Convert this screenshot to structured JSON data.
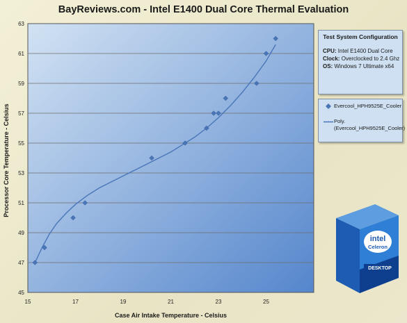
{
  "chart_data": {
    "type": "scatter",
    "title": "BayReviews.com - Intel E1400 Dual Core Thermal Evaluation",
    "xlabel": "Case Air Intake Temperature - Celsius",
    "ylabel": "Processor Core Temperature - Celsius",
    "xlim": [
      15,
      27
    ],
    "ylim": [
      45,
      63
    ],
    "xticks": [
      15,
      17,
      19,
      21,
      23,
      25
    ],
    "yticks": [
      45,
      47,
      49,
      51,
      53,
      55,
      57,
      59,
      61,
      63
    ],
    "grid": "horizontal",
    "legend_position": "right",
    "series": [
      {
        "name": "Evercool_HPH9525E_Cooler",
        "marker": "diamond",
        "color": "#4a76b8",
        "points": [
          [
            15.3,
            47
          ],
          [
            15.7,
            48
          ],
          [
            16.9,
            50
          ],
          [
            17.4,
            51
          ],
          [
            20.2,
            54
          ],
          [
            21.6,
            55
          ],
          [
            22.5,
            56
          ],
          [
            22.8,
            57
          ],
          [
            23.0,
            57
          ],
          [
            23.3,
            58
          ],
          [
            24.6,
            59
          ],
          [
            25.0,
            61
          ],
          [
            25.4,
            62
          ]
        ]
      },
      {
        "name": "Poly. (Evercool_HPH9525E_Cooler)",
        "type": "trendline",
        "color": "#4a76b8",
        "points": [
          [
            15.3,
            47.0
          ],
          [
            15.6,
            48.0
          ],
          [
            15.9,
            48.9
          ],
          [
            16.2,
            49.6
          ],
          [
            16.6,
            50.3
          ],
          [
            17.0,
            50.9
          ],
          [
            17.5,
            51.5
          ],
          [
            18.0,
            52.0
          ],
          [
            18.5,
            52.4
          ],
          [
            19.0,
            52.8
          ],
          [
            19.5,
            53.2
          ],
          [
            20.0,
            53.6
          ],
          [
            20.5,
            54.0
          ],
          [
            21.0,
            54.4
          ],
          [
            21.5,
            54.9
          ],
          [
            22.0,
            55.4
          ],
          [
            22.5,
            56.0
          ],
          [
            23.0,
            56.7
          ],
          [
            23.5,
            57.5
          ],
          [
            24.0,
            58.4
          ],
          [
            24.5,
            59.4
          ],
          [
            25.0,
            60.5
          ],
          [
            25.4,
            61.6
          ]
        ]
      }
    ]
  },
  "legend": {
    "entries": [
      "Evercool_HPH9525E_Cooler",
      "Poly. (Evercool_HPH9525E_Cooler)"
    ]
  },
  "config": {
    "title": "Test System Configuration",
    "rows": [
      {
        "key": "CPU:",
        "value": "Intel E1400  Dual Core"
      },
      {
        "key": "Clock:",
        "value": "Overclocked to 2.4 Ghz"
      },
      {
        "key": "OS:",
        "value": " Windows 7 Ultimate x64"
      }
    ]
  },
  "product_box": {
    "brand": "intel",
    "product": "Celeron",
    "subtitle": "DESKTOP"
  },
  "colors": {
    "plot_bg_top": "#c9daef",
    "plot_bg_bottom": "#5a8bd0",
    "series": "#4a76b8",
    "panel_bg": "#cfe0f2"
  }
}
